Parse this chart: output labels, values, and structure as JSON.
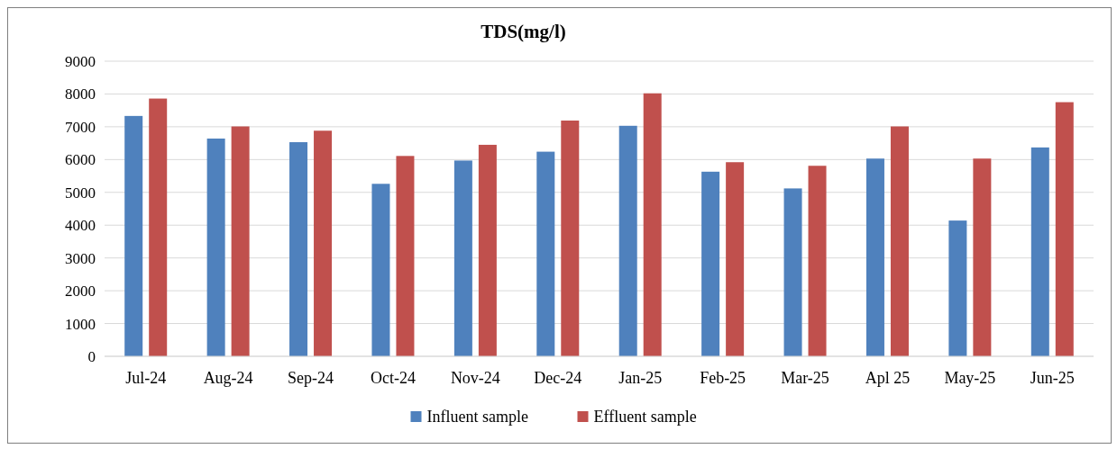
{
  "chart_data": {
    "type": "bar",
    "title": "TDS(mg/l)",
    "categories": [
      "Jul-24",
      "Aug-24",
      "Sep-24",
      "Oct-24",
      "Nov-24",
      "Dec-24",
      "Jan-25",
      "Feb-25",
      "Mar-25",
      "Apl 25",
      "May-25",
      "Jun-25"
    ],
    "series": [
      {
        "name": "Influent sample",
        "color": "#4f81bd",
        "values": [
          7330,
          6640,
          6530,
          5260,
          5970,
          6240,
          7030,
          5630,
          5120,
          6030,
          4140,
          6370
        ]
      },
      {
        "name": "Effluent sample",
        "color": "#c0504d",
        "values": [
          7860,
          7010,
          6880,
          6110,
          6450,
          7190,
          8020,
          5920,
          5810,
          7010,
          6030,
          7750
        ]
      }
    ],
    "ylim": [
      0,
      9000
    ],
    "yticks": [
      0,
      1000,
      2000,
      3000,
      4000,
      5000,
      6000,
      7000,
      8000,
      9000
    ],
    "grid": "y",
    "legend": "bottom"
  }
}
